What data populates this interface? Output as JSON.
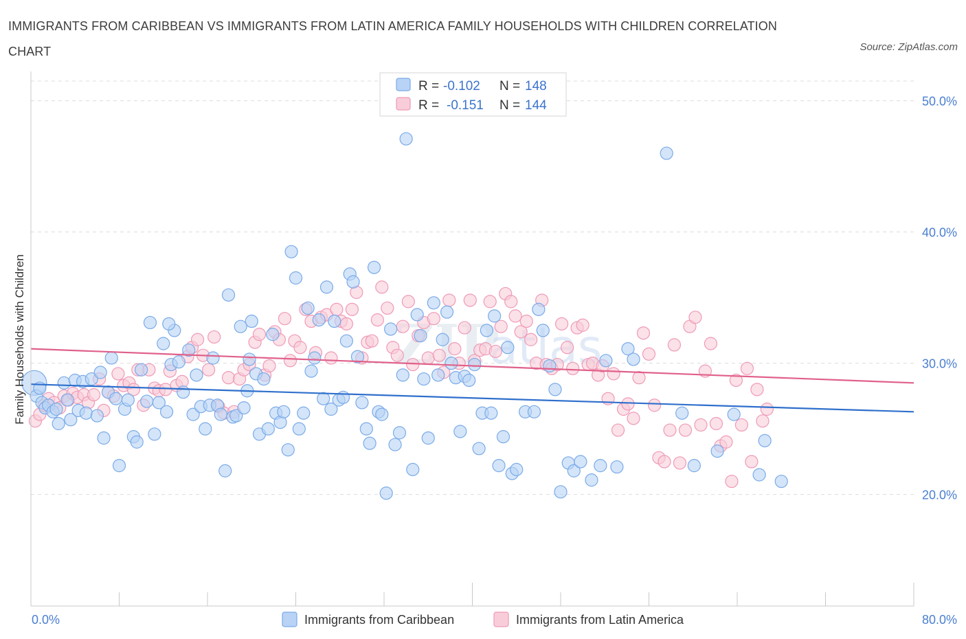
{
  "title": "IMMIGRANTS FROM CARIBBEAN VS IMMIGRANTS FROM LATIN AMERICA FAMILY HOUSEHOLDS WITH CHILDREN CORRELATION CHART",
  "source": "Source: ZipAtlas.com",
  "colors": {
    "blue": "#7aaae8",
    "blue_fill": "#b8d3f5",
    "blue_line": "#2f6fcc",
    "pink": "#ef9ab6",
    "pink_fill": "#f8cdd9",
    "pink_line": "#e0608a",
    "accent_text": "#3b73cc"
  },
  "chart_data": {
    "type": "scatter",
    "title": "IMMIGRANTS FROM CARIBBEAN VS IMMIGRANTS FROM LATIN AMERICA FAMILY HOUSEHOLDS WITH CHILDREN CORRELATION CHART",
    "xlabel": "",
    "ylabel": "Family Households with Children",
    "xlim": [
      0,
      80
    ],
    "ylim": [
      11.5,
      51.5
    ],
    "x_tick_labels": [
      "0.0%",
      "80.0%"
    ],
    "y_ticks": [
      20,
      30,
      40,
      50
    ],
    "y_tick_labels": [
      "20.0%",
      "30.0%",
      "40.0%",
      "50.0%"
    ],
    "grid": true,
    "legend_position": "bottom",
    "stats": [
      {
        "r_label": "R =",
        "r": "-0.102",
        "n_label": "N =",
        "n": "148"
      },
      {
        "r_label": "R =",
        "r": "-0.151",
        "n_label": "N =",
        "n": "144"
      }
    ],
    "series": [
      {
        "name": "Immigrants from Caribbean",
        "trend": {
          "x": [
            0,
            80
          ],
          "y": [
            28.4,
            26.3
          ]
        },
        "points": [
          [
            0.3,
            28.5
          ],
          [
            0.5,
            27.5
          ],
          [
            0.8,
            28.1
          ],
          [
            1.0,
            27.0
          ],
          [
            1.3,
            26.6
          ],
          [
            1.6,
            26.8
          ],
          [
            2.0,
            26.3
          ],
          [
            2.3,
            26.5
          ],
          [
            2.5,
            25.4
          ],
          [
            3.0,
            28.5
          ],
          [
            3.3,
            27.2
          ],
          [
            3.6,
            25.7
          ],
          [
            4.0,
            28.7
          ],
          [
            4.3,
            26.4
          ],
          [
            4.7,
            28.6
          ],
          [
            5.0,
            26.2
          ],
          [
            5.5,
            28.8
          ],
          [
            6.0,
            26.0
          ],
          [
            6.3,
            29.3
          ],
          [
            6.6,
            24.3
          ],
          [
            7.0,
            27.8
          ],
          [
            7.3,
            30.4
          ],
          [
            7.7,
            27.3
          ],
          [
            8.0,
            22.2
          ],
          [
            8.5,
            26.5
          ],
          [
            8.8,
            27.2
          ],
          [
            9.3,
            24.4
          ],
          [
            9.6,
            24.0
          ],
          [
            10.0,
            29.5
          ],
          [
            10.5,
            27.1
          ],
          [
            10.8,
            33.1
          ],
          [
            11.2,
            24.6
          ],
          [
            11.6,
            27.0
          ],
          [
            12.0,
            31.5
          ],
          [
            12.3,
            26.3
          ],
          [
            12.7,
            29.9
          ],
          [
            13.0,
            32.5
          ],
          [
            13.4,
            30.1
          ],
          [
            13.8,
            27.8
          ],
          [
            14.3,
            31.0
          ],
          [
            14.7,
            26.1
          ],
          [
            15.0,
            29.1
          ],
          [
            15.4,
            26.7
          ],
          [
            15.8,
            25.0
          ],
          [
            16.2,
            26.8
          ],
          [
            16.5,
            30.4
          ],
          [
            16.9,
            26.8
          ],
          [
            17.2,
            26.1
          ],
          [
            17.6,
            21.8
          ],
          [
            17.9,
            35.2
          ],
          [
            18.3,
            25.9
          ],
          [
            18.6,
            26.0
          ],
          [
            19.0,
            32.8
          ],
          [
            19.3,
            26.6
          ],
          [
            19.6,
            27.9
          ],
          [
            20.0,
            33.2
          ],
          [
            20.4,
            29.2
          ],
          [
            20.7,
            24.6
          ],
          [
            21.1,
            28.8
          ],
          [
            21.5,
            25.0
          ],
          [
            21.9,
            32.2
          ],
          [
            22.2,
            26.2
          ],
          [
            22.6,
            25.5
          ],
          [
            22.9,
            26.3
          ],
          [
            23.3,
            23.4
          ],
          [
            23.6,
            38.5
          ],
          [
            24.0,
            36.5
          ],
          [
            24.3,
            25.0
          ],
          [
            24.7,
            26.2
          ],
          [
            25.1,
            34.2
          ],
          [
            25.4,
            29.4
          ],
          [
            25.7,
            30.4
          ],
          [
            26.1,
            33.3
          ],
          [
            26.5,
            27.3
          ],
          [
            26.8,
            35.8
          ],
          [
            27.2,
            26.5
          ],
          [
            27.5,
            33.2
          ],
          [
            27.9,
            27.2
          ],
          [
            28.3,
            27.4
          ],
          [
            28.6,
            31.7
          ],
          [
            28.9,
            36.8
          ],
          [
            29.2,
            36.2
          ],
          [
            29.6,
            30.5
          ],
          [
            30.0,
            27.0
          ],
          [
            30.4,
            25.0
          ],
          [
            30.7,
            23.9
          ],
          [
            31.1,
            37.3
          ],
          [
            31.5,
            26.3
          ],
          [
            31.8,
            26.1
          ],
          [
            32.2,
            20.1
          ],
          [
            32.6,
            32.6
          ],
          [
            33.0,
            23.8
          ],
          [
            33.4,
            24.7
          ],
          [
            33.7,
            29.1
          ],
          [
            34.0,
            47.1
          ],
          [
            34.6,
            21.9
          ],
          [
            35.0,
            33.7
          ],
          [
            35.3,
            32.1
          ],
          [
            35.6,
            28.8
          ],
          [
            36.0,
            24.3
          ],
          [
            36.5,
            34.6
          ],
          [
            36.9,
            29.1
          ],
          [
            37.3,
            31.8
          ],
          [
            37.7,
            33.9
          ],
          [
            38.1,
            30.0
          ],
          [
            38.5,
            28.9
          ],
          [
            38.9,
            24.8
          ],
          [
            39.3,
            29.0
          ],
          [
            39.7,
            28.7
          ],
          [
            40.2,
            29.9
          ],
          [
            40.6,
            23.5
          ],
          [
            40.9,
            26.2
          ],
          [
            41.3,
            32.5
          ],
          [
            41.7,
            26.2
          ],
          [
            42.0,
            33.6
          ],
          [
            42.4,
            22.2
          ],
          [
            42.8,
            24.4
          ],
          [
            43.2,
            31.2
          ],
          [
            43.6,
            21.6
          ],
          [
            44.0,
            21.9
          ],
          [
            44.8,
            26.3
          ],
          [
            45.6,
            26.3
          ],
          [
            46.0,
            34.1
          ],
          [
            46.4,
            32.5
          ],
          [
            47.0,
            29.8
          ],
          [
            47.5,
            28.0
          ],
          [
            48.0,
            20.2
          ],
          [
            48.7,
            22.4
          ],
          [
            49.2,
            21.8
          ],
          [
            49.8,
            22.5
          ],
          [
            50.8,
            21.1
          ],
          [
            51.6,
            22.2
          ],
          [
            52.1,
            30.2
          ],
          [
            53.1,
            22.1
          ],
          [
            54.1,
            31.1
          ],
          [
            54.6,
            30.3
          ],
          [
            57.6,
            46.0
          ],
          [
            59.0,
            26.2
          ],
          [
            60.1,
            22.2
          ],
          [
            62.2,
            23.3
          ],
          [
            63.7,
            26.1
          ],
          [
            66.0,
            21.5
          ],
          [
            66.5,
            24.1
          ],
          [
            68.0,
            21.0
          ],
          [
            12.5,
            33.0
          ],
          [
            19.8,
            30.3
          ]
        ]
      },
      {
        "name": "Immigrants from Latin America",
        "trend": {
          "x": [
            0,
            80
          ],
          "y": [
            31.1,
            28.5
          ]
        },
        "points": [
          [
            0.4,
            25.6
          ],
          [
            0.8,
            26.1
          ],
          [
            1.2,
            26.8
          ],
          [
            1.6,
            27.3
          ],
          [
            2.1,
            27.0
          ],
          [
            2.6,
            26.6
          ],
          [
            3.0,
            27.5
          ],
          [
            3.4,
            27.2
          ],
          [
            3.8,
            27.7
          ],
          [
            4.2,
            27.4
          ],
          [
            4.8,
            27.6
          ],
          [
            5.2,
            27.0
          ],
          [
            5.7,
            27.6
          ],
          [
            6.2,
            28.8
          ],
          [
            6.6,
            26.4
          ],
          [
            7.0,
            27.8
          ],
          [
            7.5,
            27.5
          ],
          [
            7.9,
            29.2
          ],
          [
            8.4,
            28.3
          ],
          [
            8.9,
            28.5
          ],
          [
            9.3,
            28.0
          ],
          [
            9.7,
            29.5
          ],
          [
            10.2,
            26.8
          ],
          [
            10.7,
            29.5
          ],
          [
            11.2,
            28.1
          ],
          [
            11.6,
            27.9
          ],
          [
            12.2,
            28.0
          ],
          [
            12.6,
            29.4
          ],
          [
            13.2,
            28.3
          ],
          [
            13.7,
            28.6
          ],
          [
            14.2,
            30.5
          ],
          [
            14.6,
            31.2
          ],
          [
            15.1,
            31.8
          ],
          [
            15.6,
            30.6
          ],
          [
            16.1,
            29.5
          ],
          [
            16.6,
            32.0
          ],
          [
            17.0,
            26.7
          ],
          [
            17.5,
            26.2
          ],
          [
            17.9,
            28.9
          ],
          [
            18.4,
            26.3
          ],
          [
            18.9,
            28.8
          ],
          [
            19.3,
            29.5
          ],
          [
            19.8,
            29.9
          ],
          [
            20.3,
            31.6
          ],
          [
            20.7,
            32.2
          ],
          [
            21.2,
            29.1
          ],
          [
            21.6,
            29.8
          ],
          [
            22.1,
            32.4
          ],
          [
            22.5,
            31.8
          ],
          [
            23.0,
            33.4
          ],
          [
            23.5,
            30.2
          ],
          [
            23.9,
            31.7
          ],
          [
            24.4,
            31.2
          ],
          [
            24.9,
            34.1
          ],
          [
            25.4,
            33.2
          ],
          [
            25.8,
            30.8
          ],
          [
            26.3,
            33.5
          ],
          [
            26.8,
            33.7
          ],
          [
            27.2,
            30.4
          ],
          [
            27.7,
            34.1
          ],
          [
            28.1,
            33.2
          ],
          [
            28.6,
            33.0
          ],
          [
            29.1,
            34.1
          ],
          [
            29.5,
            35.4
          ],
          [
            30.0,
            30.4
          ],
          [
            30.5,
            31.6
          ],
          [
            30.9,
            31.7
          ],
          [
            31.4,
            33.3
          ],
          [
            31.8,
            35.8
          ],
          [
            32.3,
            34.2
          ],
          [
            32.8,
            31.2
          ],
          [
            33.2,
            30.6
          ],
          [
            33.7,
            32.8
          ],
          [
            34.2,
            34.7
          ],
          [
            34.6,
            29.9
          ],
          [
            35.1,
            32.1
          ],
          [
            35.6,
            33.1
          ],
          [
            36.0,
            30.4
          ],
          [
            36.5,
            33.4
          ],
          [
            37.0,
            30.6
          ],
          [
            37.4,
            29.3
          ],
          [
            37.9,
            34.8
          ],
          [
            38.4,
            31.1
          ],
          [
            38.8,
            30.0
          ],
          [
            39.3,
            32.7
          ],
          [
            39.8,
            34.8
          ],
          [
            40.2,
            30.2
          ],
          [
            40.7,
            31.0
          ],
          [
            41.2,
            31.1
          ],
          [
            41.6,
            34.7
          ],
          [
            42.1,
            30.9
          ],
          [
            42.6,
            32.8
          ],
          [
            43.0,
            35.3
          ],
          [
            43.5,
            34.7
          ],
          [
            43.9,
            33.6
          ],
          [
            44.4,
            32.4
          ],
          [
            44.9,
            33.2
          ],
          [
            45.3,
            31.8
          ],
          [
            45.8,
            30.0
          ],
          [
            46.3,
            34.8
          ],
          [
            46.7,
            29.9
          ],
          [
            47.2,
            29.6
          ],
          [
            47.7,
            29.9
          ],
          [
            48.1,
            33.0
          ],
          [
            48.6,
            31.2
          ],
          [
            49.1,
            29.6
          ],
          [
            49.5,
            32.7
          ],
          [
            50.0,
            32.9
          ],
          [
            50.5,
            29.9
          ],
          [
            50.9,
            30.0
          ],
          [
            51.4,
            29.1
          ],
          [
            51.8,
            29.8
          ],
          [
            52.3,
            27.3
          ],
          [
            52.8,
            29.2
          ],
          [
            53.2,
            24.9
          ],
          [
            53.7,
            26.5
          ],
          [
            54.1,
            26.9
          ],
          [
            54.6,
            25.8
          ],
          [
            55.1,
            28.9
          ],
          [
            55.5,
            32.3
          ],
          [
            56.0,
            30.7
          ],
          [
            56.5,
            26.8
          ],
          [
            56.9,
            22.8
          ],
          [
            57.4,
            22.5
          ],
          [
            57.9,
            24.9
          ],
          [
            58.3,
            31.4
          ],
          [
            58.8,
            22.4
          ],
          [
            59.3,
            24.9
          ],
          [
            59.7,
            32.8
          ],
          [
            60.2,
            33.5
          ],
          [
            60.7,
            25.3
          ],
          [
            61.1,
            29.4
          ],
          [
            61.6,
            31.5
          ],
          [
            62.1,
            25.4
          ],
          [
            62.5,
            23.7
          ],
          [
            63.0,
            24.0
          ],
          [
            63.5,
            21.0
          ],
          [
            63.9,
            28.7
          ],
          [
            64.4,
            25.3
          ],
          [
            64.9,
            29.6
          ],
          [
            65.3,
            22.5
          ],
          [
            65.8,
            28.0
          ],
          [
            66.3,
            25.6
          ],
          [
            66.7,
            26.5
          ]
        ]
      }
    ]
  },
  "legend": {
    "items": [
      {
        "label": "Immigrants from Caribbean"
      },
      {
        "label": "Immigrants from Latin America"
      }
    ]
  }
}
